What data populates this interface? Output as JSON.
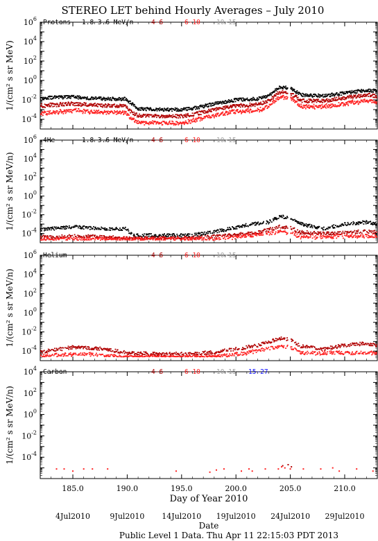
{
  "title": "STEREO LET behind Hourly Averages – July 2010",
  "colors": {
    "black": "#000000",
    "darkred": "#b00000",
    "red": "#ff2020",
    "gray": "#a0a0a0",
    "blue": "#1010ff"
  },
  "x_axis": {
    "label": "Day of Year 2010",
    "min": 182,
    "max": 213,
    "ticks": [
      185,
      190,
      195,
      200,
      205,
      210
    ],
    "tick_labels": [
      "185.0",
      "190.0",
      "195.0",
      "200.0",
      "205.0",
      "210.0"
    ]
  },
  "date_labels": [
    {
      "day": 185,
      "text": "4Jul2010"
    },
    {
      "day": 190,
      "text": "9Jul2010"
    },
    {
      "day": 195,
      "text": "14Jul2010"
    },
    {
      "day": 200,
      "text": "19Jul2010"
    },
    {
      "day": 205,
      "text": "24Jul2010"
    },
    {
      "day": 210,
      "text": "29Jul2010"
    }
  ],
  "date_title": "Date",
  "footer": "Public Level 1 Data. Thu Apr 11 22:15:03 PDT 2013",
  "chart_data": [
    {
      "type": "scatter",
      "panel": "Protons",
      "ylabel": "1/(cm² s sr MeV)",
      "ylog": true,
      "ylim_exp": [
        -5,
        6
      ],
      "ytick_exps": [
        -4,
        -2,
        0,
        2,
        4,
        6
      ],
      "legend": [
        {
          "label": "1.8-3.6 MeV/n",
          "color": "black"
        },
        {
          "label": "4-6",
          "color": "darkred"
        },
        {
          "label": "6-10",
          "color": "red"
        },
        {
          "label": "10-15",
          "color": "gray"
        }
      ],
      "series": [
        {
          "name": "1.8-3.6 MeV/n",
          "color": "black",
          "points": [
            [
              182,
              -1.8
            ],
            [
              185,
              -1.7
            ],
            [
              188,
              -1.9
            ],
            [
              189.9,
              -1.9
            ],
            [
              190.3,
              -2.3
            ],
            [
              191,
              -2.9
            ],
            [
              193,
              -3.0
            ],
            [
              195,
              -3.0
            ],
            [
              196.5,
              -2.8
            ],
            [
              198,
              -2.4
            ],
            [
              200,
              -2.0
            ],
            [
              202,
              -1.9
            ],
            [
              203,
              -1.6
            ],
            [
              204,
              -0.7
            ],
            [
              205,
              -0.8
            ],
            [
              206,
              -1.5
            ],
            [
              208,
              -1.6
            ],
            [
              210,
              -1.3
            ],
            [
              212,
              -1.0
            ],
            [
              213,
              -1.1
            ]
          ]
        },
        {
          "name": "4-6",
          "color": "darkred",
          "points": [
            [
              182,
              -2.6
            ],
            [
              185,
              -2.4
            ],
            [
              188,
              -2.6
            ],
            [
              189.9,
              -2.6
            ],
            [
              190.3,
              -3.2
            ],
            [
              191,
              -3.6
            ],
            [
              193,
              -3.7
            ],
            [
              195,
              -3.7
            ],
            [
              196.5,
              -3.4
            ],
            [
              198,
              -3.0
            ],
            [
              200,
              -2.6
            ],
            [
              202,
              -2.5
            ],
            [
              203,
              -2.1
            ],
            [
              204,
              -1.2
            ],
            [
              205,
              -1.3
            ],
            [
              206,
              -2.1
            ],
            [
              208,
              -2.1
            ],
            [
              210,
              -1.8
            ],
            [
              212,
              -1.5
            ],
            [
              213,
              -1.6
            ]
          ]
        },
        {
          "name": "6-10",
          "color": "red",
          "points": [
            [
              182,
              -3.4
            ],
            [
              185,
              -3.1
            ],
            [
              188,
              -3.3
            ],
            [
              189.9,
              -3.3
            ],
            [
              190.3,
              -3.9
            ],
            [
              191,
              -4.3
            ],
            [
              193,
              -4.4
            ],
            [
              195,
              -4.4
            ],
            [
              196.5,
              -4.0
            ],
            [
              198,
              -3.6
            ],
            [
              200,
              -3.2
            ],
            [
              202,
              -3.1
            ],
            [
              203,
              -2.7
            ],
            [
              204,
              -1.7
            ],
            [
              205,
              -1.8
            ],
            [
              206,
              -2.7
            ],
            [
              208,
              -2.7
            ],
            [
              210,
              -2.4
            ],
            [
              212,
              -2.1
            ],
            [
              213,
              -2.2
            ]
          ]
        }
      ]
    },
    {
      "type": "scatter",
      "panel": "4He",
      "ylabel": "1/(cm² s sr MeV/n)",
      "ylog": true,
      "ylim_exp": [
        -5,
        6
      ],
      "ytick_exps": [
        -4,
        -2,
        0,
        2,
        4,
        6
      ],
      "legend": [
        {
          "label": "1.8-3.6 MeV/n",
          "color": "black"
        },
        {
          "label": "4-6",
          "color": "darkred"
        },
        {
          "label": "6-10",
          "color": "red"
        },
        {
          "label": "10-15",
          "color": "gray"
        }
      ],
      "series": [
        {
          "name": "1.8-3.6 MeV/n",
          "color": "black",
          "points": [
            [
              182,
              -3.6
            ],
            [
              185,
              -3.3
            ],
            [
              188,
              -3.5
            ],
            [
              189.9,
              -3.5
            ],
            [
              190.5,
              -4.2
            ],
            [
              193,
              -4.2
            ],
            [
              196,
              -4.2
            ],
            [
              197,
              -4.0
            ],
            [
              199,
              -3.6
            ],
            [
              201,
              -3.1
            ],
            [
              203,
              -2.8
            ],
            [
              204,
              -2.2
            ],
            [
              205,
              -2.3
            ],
            [
              206,
              -3.0
            ],
            [
              208,
              -3.5
            ],
            [
              210,
              -3.0
            ],
            [
              212,
              -2.8
            ],
            [
              213,
              -3.0
            ]
          ]
        },
        {
          "name": "4-6",
          "color": "darkred",
          "points": [
            [
              182,
              -4.4
            ],
            [
              186,
              -4.3
            ],
            [
              190,
              -4.5
            ],
            [
              196,
              -4.5
            ],
            [
              199,
              -4.2
            ],
            [
              202,
              -3.9
            ],
            [
              204,
              -3.3
            ],
            [
              205,
              -3.4
            ],
            [
              206,
              -3.9
            ],
            [
              209,
              -4.0
            ],
            [
              212,
              -3.8
            ],
            [
              213,
              -3.9
            ]
          ]
        },
        {
          "name": "6-10",
          "color": "red",
          "points": [
            [
              182,
              -4.6
            ],
            [
              190,
              -4.6
            ],
            [
              198,
              -4.6
            ],
            [
              201,
              -4.3
            ],
            [
              204,
              -3.8
            ],
            [
              205,
              -3.9
            ],
            [
              206,
              -4.4
            ],
            [
              210,
              -4.3
            ],
            [
              213,
              -4.3
            ]
          ]
        }
      ]
    },
    {
      "type": "scatter",
      "panel": "Helium",
      "ylabel": "1/(cm² s sr MeV/n)",
      "ylog": true,
      "ylim_exp": [
        -5,
        6
      ],
      "ytick_exps": [
        -4,
        -2,
        0,
        2,
        4,
        6
      ],
      "legend": [
        {
          "label": "4-6",
          "color": "darkred"
        },
        {
          "label": "6-10",
          "color": "red"
        },
        {
          "label": "10-15",
          "color": "gray"
        }
      ],
      "series": [
        {
          "name": "4-6",
          "color": "darkred",
          "points": [
            [
              182,
              -4.1
            ],
            [
              185,
              -3.6
            ],
            [
              188,
              -3.8
            ],
            [
              190,
              -4.2
            ],
            [
              193,
              -4.3
            ],
            [
              196,
              -4.3
            ],
            [
              198,
              -4.1
            ],
            [
              200,
              -3.8
            ],
            [
              202,
              -3.4
            ],
            [
              204,
              -2.7
            ],
            [
              205,
              -2.8
            ],
            [
              206,
              -3.5
            ],
            [
              208,
              -3.8
            ],
            [
              210,
              -3.4
            ],
            [
              212,
              -3.2
            ],
            [
              213,
              -3.4
            ]
          ]
        },
        {
          "name": "6-10",
          "color": "red",
          "points": [
            [
              182,
              -4.5
            ],
            [
              186,
              -4.3
            ],
            [
              190,
              -4.6
            ],
            [
              198,
              -4.6
            ],
            [
              201,
              -4.2
            ],
            [
              204,
              -3.5
            ],
            [
              205,
              -3.6
            ],
            [
              206,
              -4.2
            ],
            [
              210,
              -4.2
            ],
            [
              213,
              -4.2
            ]
          ]
        }
      ]
    },
    {
      "type": "scatter",
      "panel": "Carbon",
      "ylabel": "1/(cm² s sr MeV/n)",
      "ylog": true,
      "ylim_exp": [
        -6,
        4
      ],
      "ytick_exps": [
        -4,
        -2,
        0,
        2,
        4
      ],
      "legend": [
        {
          "label": "4-6",
          "color": "darkred"
        },
        {
          "label": "6-10",
          "color": "red"
        },
        {
          "label": "10-15",
          "color": "gray"
        },
        {
          "label": "15-27",
          "color": "blue"
        }
      ],
      "series": [
        {
          "name": "4-6",
          "color": "darkred",
          "points": [
            [
              204.3,
              -4.8
            ],
            [
              204.8,
              -4.7
            ],
            [
              205.1,
              -4.9
            ]
          ]
        },
        {
          "name": "6-10",
          "color": "red",
          "points": [
            [
              183.5,
              -5.1
            ],
            [
              184.2,
              -5.1
            ],
            [
              185,
              -5.3
            ],
            [
              186,
              -5.1
            ],
            [
              186.8,
              -5.1
            ],
            [
              188.2,
              -5.1
            ],
            [
              194.5,
              -5.3
            ],
            [
              197.6,
              -5.4
            ],
            [
              198.2,
              -5.2
            ],
            [
              198.9,
              -5.1
            ],
            [
              200.5,
              -5.3
            ],
            [
              201.2,
              -5.1
            ],
            [
              201.5,
              -5.3
            ],
            [
              202.7,
              -5.1
            ],
            [
              203.9,
              -5.1
            ],
            [
              204.2,
              -4.9
            ],
            [
              204.5,
              -5.0
            ],
            [
              205,
              -5.1
            ],
            [
              206.2,
              -5.1
            ],
            [
              207.8,
              -5.1
            ],
            [
              208.9,
              -5.0
            ],
            [
              209.5,
              -5.3
            ],
            [
              211.1,
              -5.1
            ],
            [
              212.6,
              -5.3
            ]
          ]
        }
      ]
    }
  ]
}
